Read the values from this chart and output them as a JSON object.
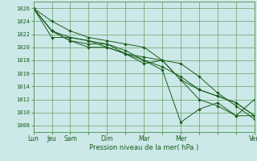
{
  "background_color": "#cce8e8",
  "grid_color": "#5a9a5a",
  "line_color": "#1a5c1a",
  "ylabel_ticks": [
    1008,
    1010,
    1012,
    1014,
    1016,
    1018,
    1020,
    1022,
    1024,
    1026
  ],
  "ylim": [
    1007.0,
    1027.0
  ],
  "xlabel": "Pression niveau de la mer( hPa )",
  "xtick_labels": [
    "Lun",
    "Jeu",
    "Sam",
    "",
    "Dim",
    "",
    "Mar",
    "",
    "Mer",
    "",
    "",
    "",
    "Ven"
  ],
  "xtick_positions": [
    0,
    1,
    2,
    3,
    4,
    5,
    6,
    7,
    8,
    9,
    10,
    11,
    12
  ],
  "lines": [
    [
      1026.0,
      1024.0,
      1022.5,
      1021.5,
      1021.0,
      1020.5,
      1020.0,
      1018.0,
      1017.5,
      1015.5,
      1013.0,
      1011.0,
      1009.0
    ],
    [
      1026.0,
      1022.5,
      1021.5,
      1021.0,
      1020.5,
      1019.5,
      1018.0,
      1017.0,
      1015.5,
      1013.5,
      1012.5,
      1011.5,
      1009.5
    ],
    [
      1026.0,
      1022.5,
      1021.0,
      1020.5,
      1020.5,
      1019.0,
      1018.0,
      1016.5,
      1008.5,
      1010.5,
      1011.5,
      1009.5,
      1012.0
    ],
    [
      1026.0,
      1022.5,
      1021.0,
      1020.0,
      1020.0,
      1019.0,
      1017.5,
      1018.0,
      1015.0,
      1013.5,
      1012.5,
      1011.5,
      1009.5
    ],
    [
      1026.0,
      1021.5,
      1021.5,
      1021.0,
      1020.0,
      1019.0,
      1018.5,
      1018.0,
      1015.0,
      1012.0,
      1011.0,
      1009.5,
      1009.5
    ]
  ]
}
